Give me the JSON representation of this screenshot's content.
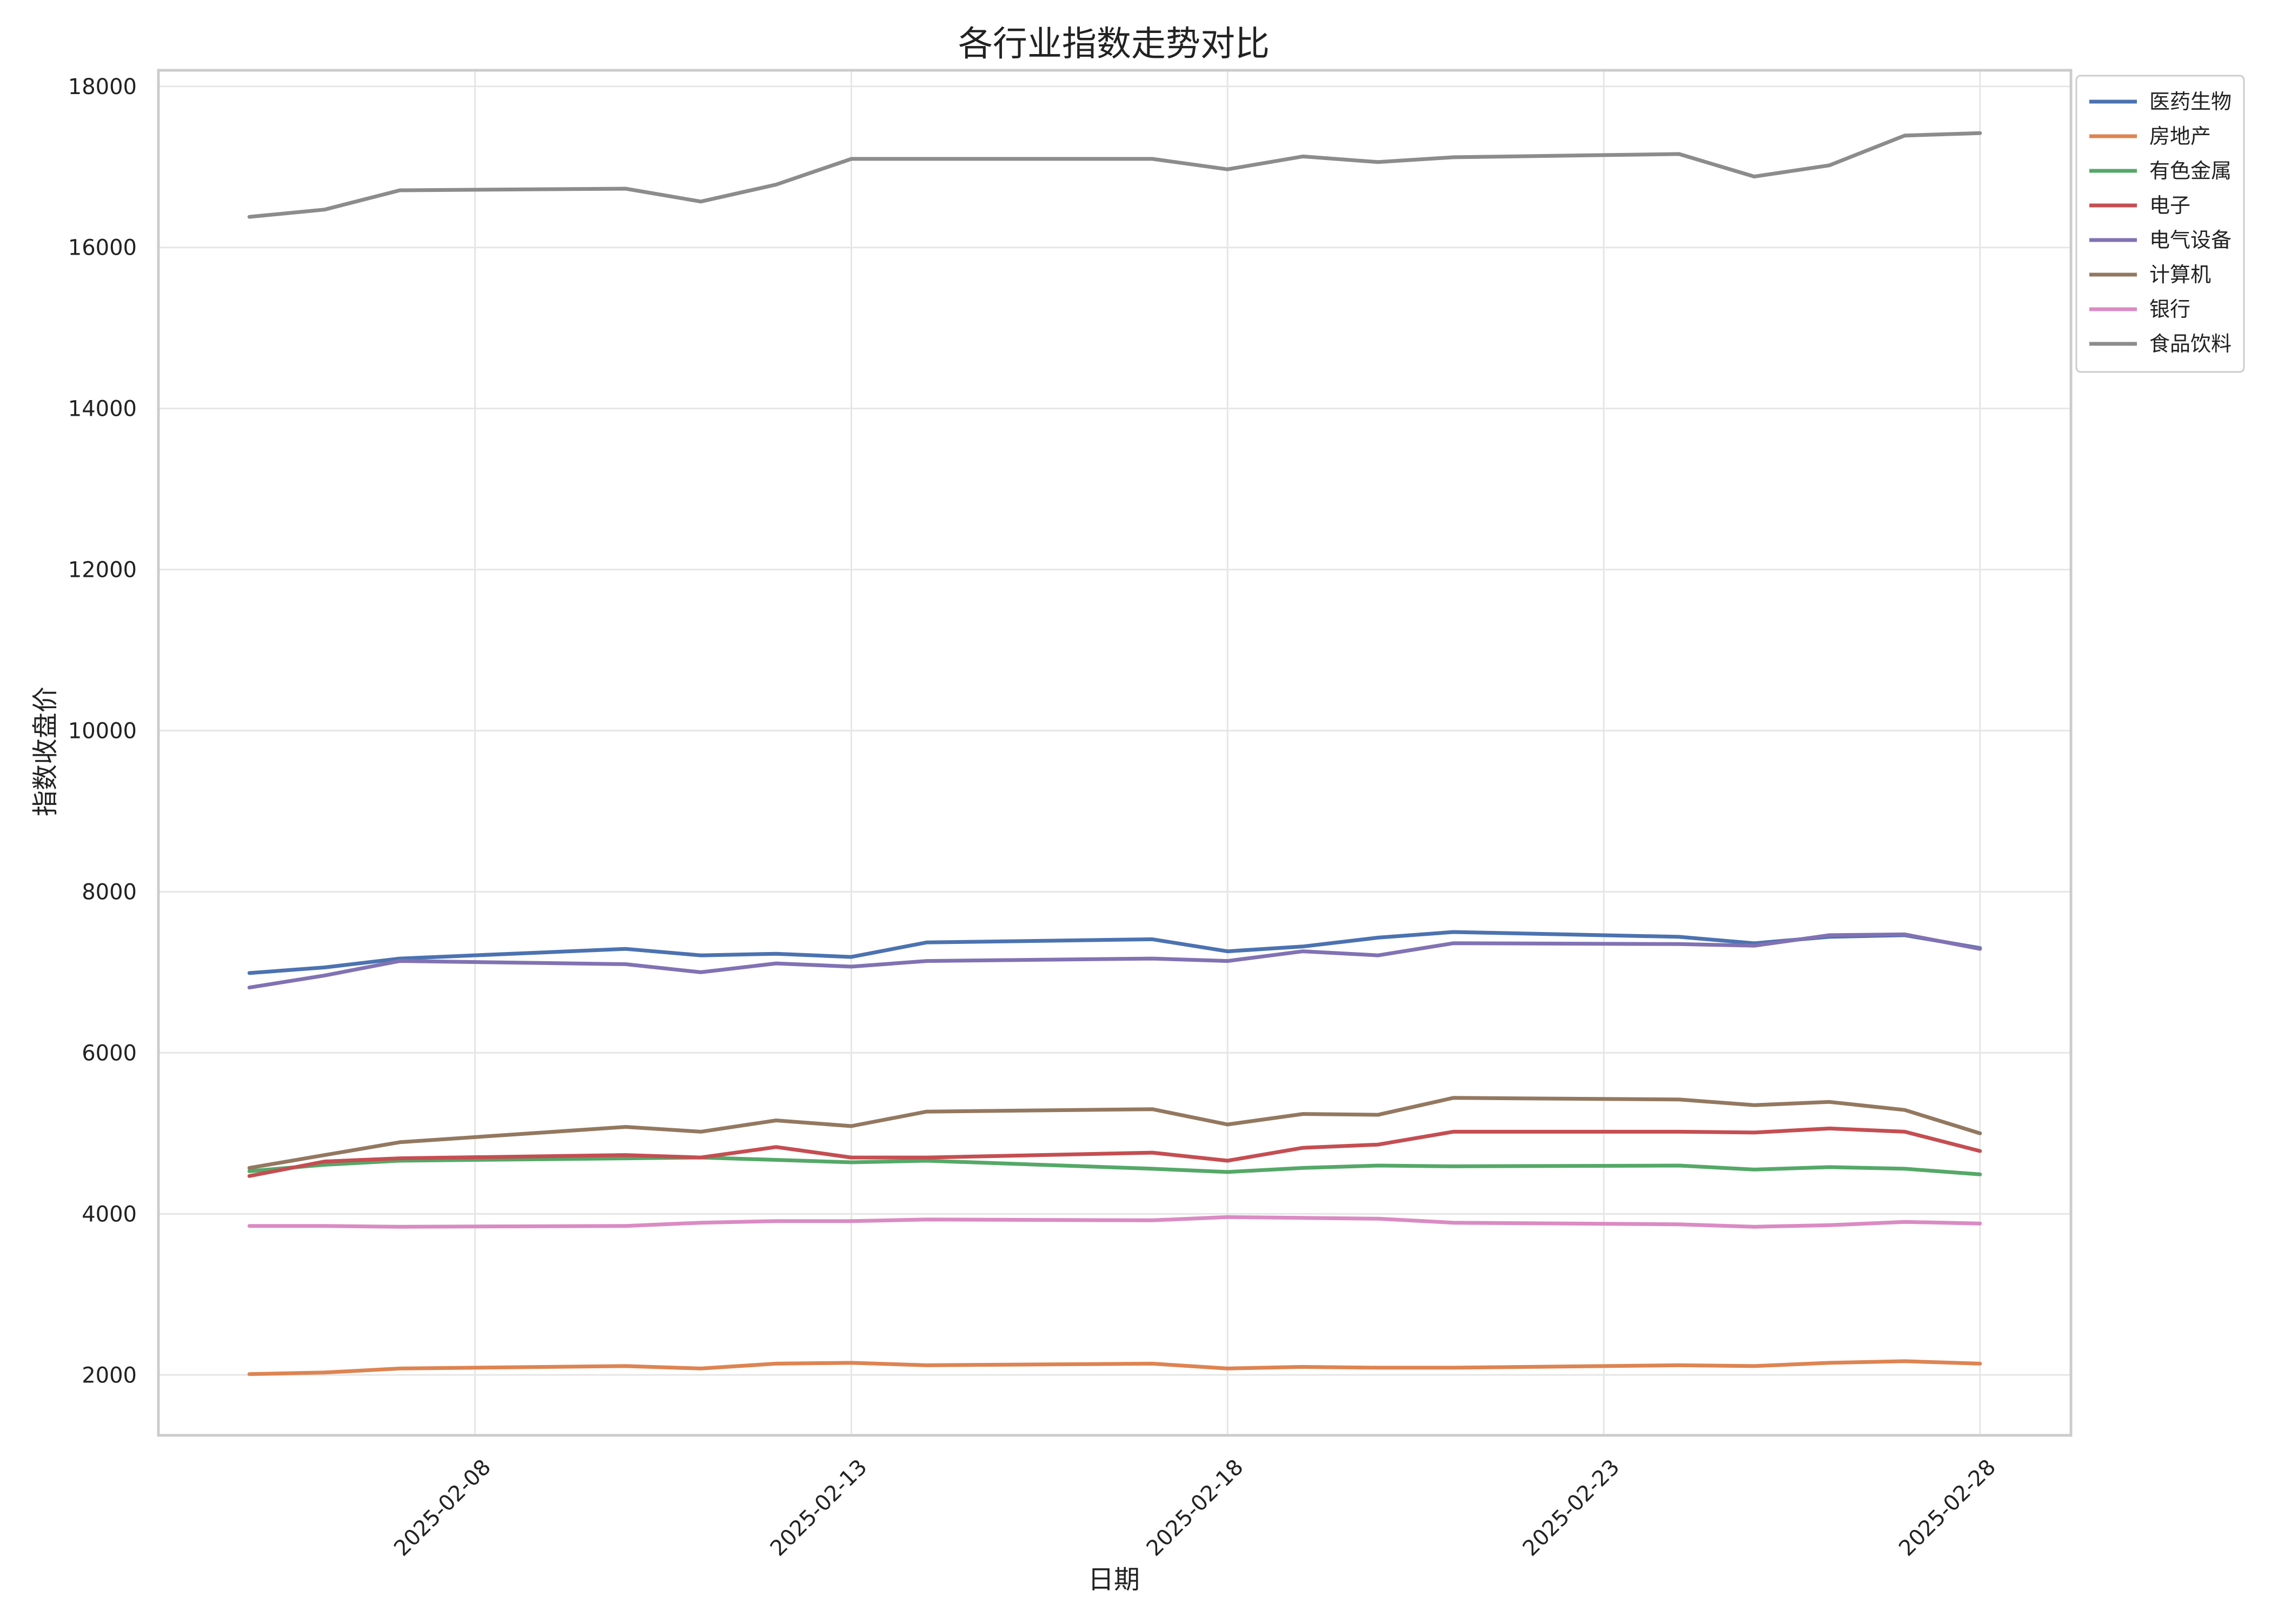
{
  "chart_data": {
    "type": "line",
    "title": "各行业指数走势对比",
    "xlabel": "日期",
    "ylabel": "指数收盘价",
    "ylim": [
      1250,
      18200
    ],
    "xlim": [
      "2025-02-03 19:00",
      "2025-03-01 05:00"
    ],
    "yticks": [
      2000,
      4000,
      6000,
      8000,
      10000,
      12000,
      14000,
      16000,
      18000
    ],
    "xticks": [
      "2025-02-08",
      "2025-02-13",
      "2025-02-18",
      "2025-02-23",
      "2025-02-28"
    ],
    "grid": true,
    "legend_position": "top-right",
    "x": [
      "2025-02-05",
      "2025-02-06",
      "2025-02-07",
      "2025-02-10",
      "2025-02-11",
      "2025-02-12",
      "2025-02-13",
      "2025-02-14",
      "2025-02-17",
      "2025-02-18",
      "2025-02-19",
      "2025-02-20",
      "2025-02-21",
      "2025-02-24",
      "2025-02-25",
      "2025-02-26",
      "2025-02-27",
      "2025-02-28"
    ],
    "series": [
      {
        "name": "医药生物",
        "color": "#4c72b0",
        "values": [
          6990,
          7060,
          7170,
          7290,
          7210,
          7230,
          7190,
          7370,
          7410,
          7260,
          7320,
          7430,
          7500,
          7440,
          7360,
          7440,
          7460,
          7300
        ]
      },
      {
        "name": "房地产",
        "color": "#dd8452",
        "values": [
          2010,
          2030,
          2080,
          2110,
          2080,
          2140,
          2150,
          2120,
          2140,
          2080,
          2100,
          2090,
          2090,
          2120,
          2110,
          2150,
          2170,
          2140
        ]
      },
      {
        "name": "有色金属",
        "color": "#55a868",
        "values": [
          4530,
          4610,
          4660,
          4690,
          4700,
          4670,
          4640,
          4660,
          4560,
          4520,
          4570,
          4600,
          4590,
          4600,
          4550,
          4580,
          4560,
          4490
        ]
      },
      {
        "name": "电子",
        "color": "#c44e52",
        "values": [
          4470,
          4650,
          4690,
          4730,
          4700,
          4830,
          4700,
          4700,
          4760,
          4660,
          4820,
          4860,
          5020,
          5020,
          5010,
          5060,
          5020,
          4780
        ]
      },
      {
        "name": "电气设备",
        "color": "#8172b3",
        "values": [
          6810,
          6960,
          7140,
          7100,
          7000,
          7110,
          7070,
          7140,
          7170,
          7140,
          7260,
          7210,
          7360,
          7350,
          7330,
          7460,
          7470,
          7290
        ]
      },
      {
        "name": "计算机",
        "color": "#937860",
        "values": [
          4570,
          4730,
          4890,
          5080,
          5020,
          5160,
          5090,
          5270,
          5300,
          5110,
          5240,
          5230,
          5440,
          5420,
          5350,
          5390,
          5290,
          5000
        ]
      },
      {
        "name": "银行",
        "color": "#da8bc3",
        "values": [
          3850,
          3850,
          3840,
          3850,
          3890,
          3910,
          3910,
          3930,
          3920,
          3960,
          3950,
          3940,
          3890,
          3870,
          3840,
          3860,
          3900,
          3880
        ]
      },
      {
        "name": "食品饮料",
        "color": "#8c8c8c",
        "values": [
          16380,
          16470,
          16710,
          16730,
          16570,
          16780,
          17100,
          17100,
          17100,
          16970,
          17130,
          17060,
          17120,
          17160,
          16880,
          17020,
          17390,
          17420
        ]
      }
    ]
  }
}
